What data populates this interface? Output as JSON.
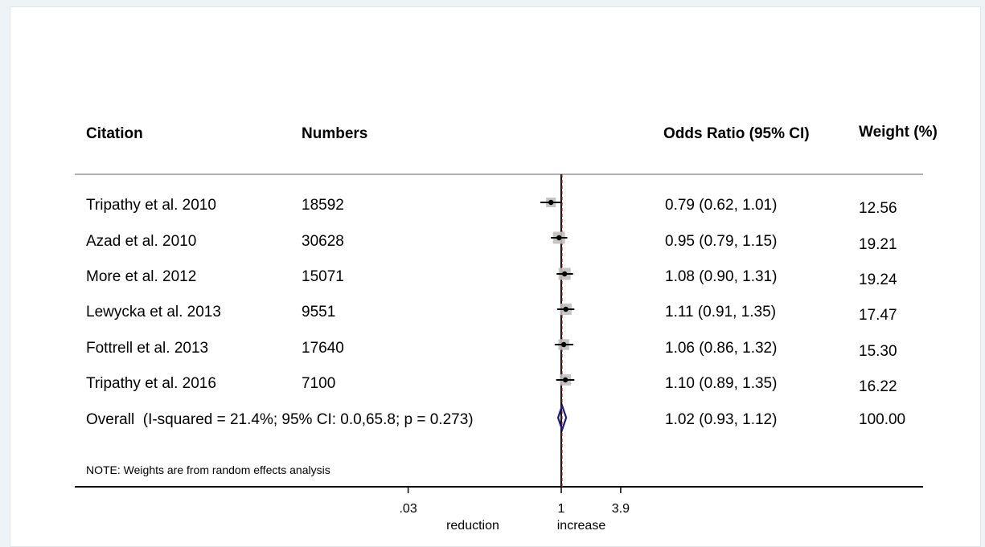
{
  "headers": {
    "citation": "Citation",
    "numbers": "Numbers",
    "or": "Odds Ratio (95% CI)",
    "weight": "Weight (%)"
  },
  "colors": {
    "point": "#000000",
    "ci_line": "#000000",
    "weight_box": "#bfbfbf",
    "diamond": "#1a1a7a",
    "null_line": "#000000",
    "overall_line": "#c0392b",
    "rule": "#b0b0b0"
  },
  "note": "NOTE: Weights are from random effects analysis",
  "axis": {
    "scale": "log",
    "range": [
      0.03,
      3.9
    ],
    "ticks": [
      {
        "value": 0.03,
        "label": ".03"
      },
      {
        "value": 1,
        "label": "1"
      },
      {
        "value": 3.9,
        "label": "3.9"
      }
    ],
    "label_left": "reduction",
    "label_right": "increase"
  },
  "chart_data": {
    "type": "forest",
    "title": "",
    "xlabel": "",
    "ylabel": "",
    "xscale": "log",
    "xlim": [
      0.03,
      3.9
    ],
    "null_value": 1,
    "studies": [
      {
        "citation": "Tripathy et al. 2010",
        "numbers": "18592",
        "or": 0.79,
        "lo": 0.62,
        "hi": 1.01,
        "or_text": "0.79 (0.62, 1.01)",
        "weight": 12.56,
        "weight_text": "12.56"
      },
      {
        "citation": "Azad et al. 2010",
        "numbers": "30628",
        "or": 0.95,
        "lo": 0.79,
        "hi": 1.15,
        "or_text": "0.95 (0.79, 1.15)",
        "weight": 19.21,
        "weight_text": "19.21"
      },
      {
        "citation": "More et al. 2012",
        "numbers": "15071",
        "or": 1.08,
        "lo": 0.9,
        "hi": 1.31,
        "or_text": "1.08 (0.90, 1.31)",
        "weight": 19.24,
        "weight_text": "19.24"
      },
      {
        "citation": "Lewycka et al. 2013",
        "numbers": "9551",
        "or": 1.11,
        "lo": 0.91,
        "hi": 1.35,
        "or_text": "1.11 (0.91, 1.35)",
        "weight": 17.47,
        "weight_text": "17.47"
      },
      {
        "citation": "Fottrell et al. 2013",
        "numbers": "17640",
        "or": 1.06,
        "lo": 0.86,
        "hi": 1.32,
        "or_text": "1.06 (0.86, 1.32)",
        "weight": 15.3,
        "weight_text": "15.30"
      },
      {
        "citation": "Tripathy et al. 2016",
        "numbers": "7100",
        "or": 1.1,
        "lo": 0.89,
        "hi": 1.35,
        "or_text": "1.10 (0.89, 1.35)",
        "weight": 16.22,
        "weight_text": "16.22"
      }
    ],
    "overall": {
      "label": "Overall  (I-squared = 21.4%; 95% CI: 0.0,65.8; p = 0.273)",
      "or": 1.02,
      "lo": 0.93,
      "hi": 1.12,
      "or_text": "1.02 (0.93, 1.12)",
      "weight_text": "100.00"
    }
  }
}
